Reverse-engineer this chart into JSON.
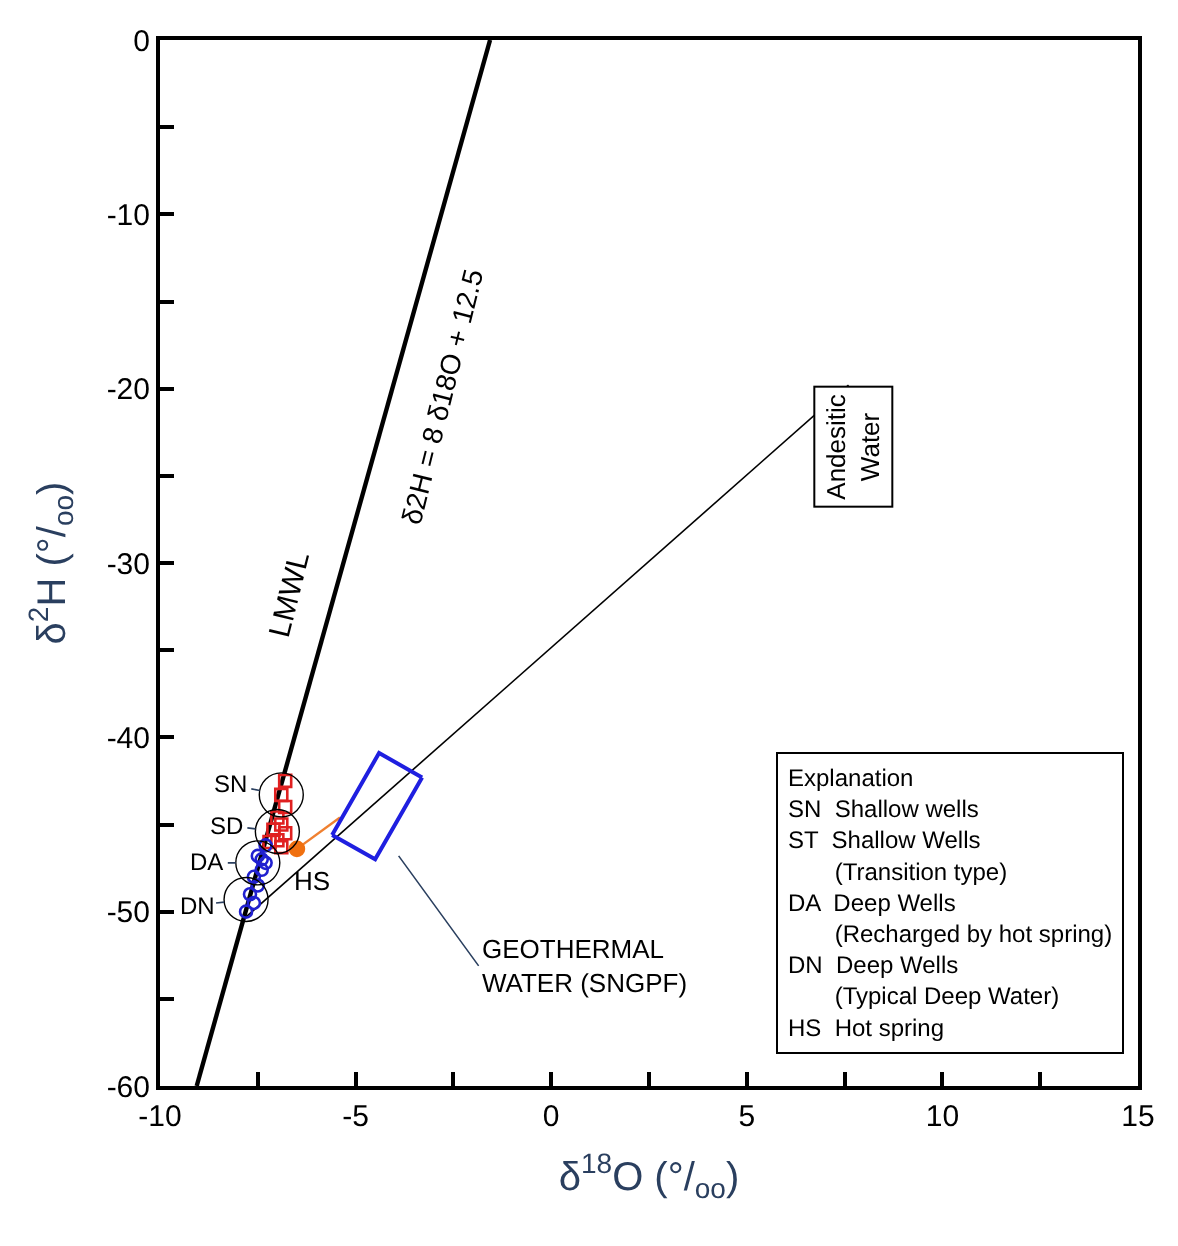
{
  "chart_data": {
    "type": "scatter",
    "xlabel": "δ$^{18}$O (°/$_{oo}$)",
    "ylabel": "δ$^{2}$H (°/$_{oo}$)",
    "xlim": [
      -10,
      15
    ],
    "ylim": [
      -60,
      0
    ],
    "xticks": [
      -10,
      {
        "value": -7.5,
        "label": null
      },
      -5,
      {
        "value": -2.5,
        "label": null
      },
      0,
      {
        "value": 2.5,
        "label": null
      },
      5,
      {
        "value": 7.5,
        "label": null
      },
      10,
      {
        "value": 12.5,
        "label": null
      },
      15
    ],
    "yticks": [
      -60,
      {
        "value": -55,
        "label": null
      },
      -50,
      {
        "value": -45,
        "label": null
      },
      -40,
      {
        "value": -35,
        "label": null
      },
      -30,
      {
        "value": -25,
        "label": null
      },
      -20,
      {
        "value": -15,
        "label": null
      },
      -10,
      {
        "value": -5,
        "label": null
      },
      0
    ],
    "series": [
      {
        "type": "line",
        "color": "#000000",
        "line_style": "solid",
        "marker": "none",
        "x": [
          -9.0625,
          -1.5625
        ],
        "values": [
          -60,
          0
        ]
      },
      {
        "type": "line",
        "color": "#000000",
        "line_style": "solid",
        "marker": "none",
        "x": [
          -7.9,
          7.6
        ],
        "values": [
          -50.5,
          -19.8
        ]
      },
      {
        "type": "line",
        "color": "#f08030",
        "line_style": "solid",
        "marker": "none",
        "x": [
          -6.5,
          -5.4
        ],
        "values": [
          -46.4,
          -44.6
        ]
      },
      {
        "type": "line",
        "color": "#1f1fe0",
        "line_style": "solid",
        "marker": "none",
        "x": [
          -5.6,
          -4.4,
          -3.3
        ],
        "values": [
          -45.6,
          -40.9,
          -42.3
        ]
      },
      {
        "type": "line",
        "color": "#1f1fe0",
        "line_style": "solid",
        "marker": "none",
        "x": [
          -5.6,
          -4.5,
          -3.3
        ],
        "values": [
          -45.6,
          -47.0,
          -42.3
        ]
      },
      {
        "color": "#e02020",
        "marker": "square",
        "x": [
          -6.8,
          -6.9,
          -6.8,
          -7.0,
          -6.9,
          -7.1,
          -6.8,
          -7.0,
          -6.9,
          -7.2
        ],
        "values": [
          -42.5,
          -43.3,
          -44.0,
          -44.6,
          -45.0,
          -45.3,
          -45.5,
          -45.9,
          -46.3,
          -46.0
        ]
      },
      {
        "color": "#2020d0",
        "marker": "circle",
        "x": [
          -7.3,
          -7.5,
          -7.3,
          -7.4,
          -7.6,
          -7.5,
          -7.7,
          -7.6,
          -7.8,
          -7.4
        ],
        "values": [
          -46.2,
          -46.8,
          -47.2,
          -47.6,
          -48.0,
          -48.5,
          -49.0,
          -49.5,
          -50.0,
          -47.0
        ]
      },
      {
        "color": "#f07010",
        "marker": "circle",
        "x": [
          -6.5
        ],
        "values": [
          -46.4
        ]
      }
    ],
    "annotations": [
      "LMWL",
      "δ2H = 8 δ18O + 12.5",
      "Andesitic\nWater",
      "GEOTHERMAL\nWATER (SNGPF)",
      {
        "text": "SN",
        "x": -6.9,
        "y": -43.3
      },
      {
        "text": "SD",
        "x": -7.0,
        "y": -45.4
      },
      {
        "text": "DA",
        "x": -7.5,
        "y": -47.2
      },
      {
        "text": "DN",
        "x": -7.8,
        "y": -49.3
      },
      {
        "text": "HS",
        "x": -6.5,
        "y": -46.4
      },
      "Explanation\nSN  Shallow wells\nST  Shallow Wells\n       (Transition type)\nDA  Deep Wells\n       (Recharged by hot spring)\nDN  Deep Wells\n       (Typical Deep Water)\nHS  Hot spring"
    ]
  }
}
